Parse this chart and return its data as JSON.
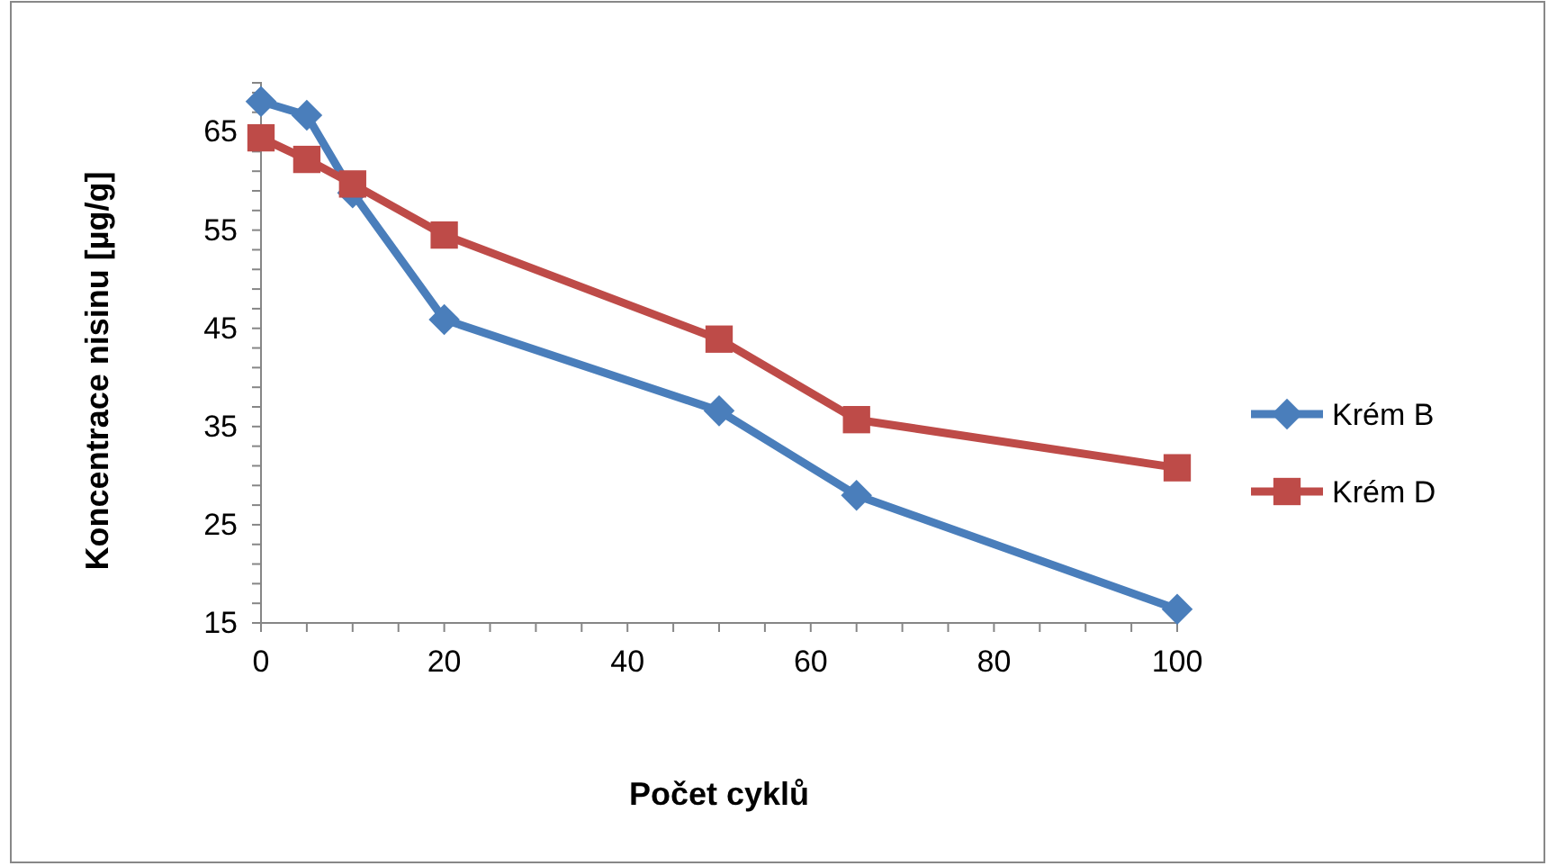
{
  "chart_data": {
    "type": "line",
    "xlabel": "Počet cyklů",
    "ylabel": "Koncentrace nisinu [µg/g]",
    "xlim": [
      0,
      100
    ],
    "ylim": [
      15,
      70
    ],
    "xticks": [
      0,
      {
        "value": 5,
        "label": null
      },
      {
        "value": 10,
        "label": null
      },
      {
        "value": 15,
        "label": null
      },
      20,
      {
        "value": 25,
        "label": null
      },
      {
        "value": 30,
        "label": null
      },
      {
        "value": 35,
        "label": null
      },
      40,
      {
        "value": 45,
        "label": null
      },
      {
        "value": 50,
        "label": null
      },
      {
        "value": 55,
        "label": null
      },
      60,
      {
        "value": 65,
        "label": null
      },
      {
        "value": 70,
        "label": null
      },
      {
        "value": 75,
        "label": null
      },
      80,
      {
        "value": 85,
        "label": null
      },
      {
        "value": 90,
        "label": null
      },
      {
        "value": 95,
        "label": null
      },
      100
    ],
    "yticks": [
      15,
      {
        "value": 17,
        "label": null
      },
      {
        "value": 19,
        "label": null
      },
      {
        "value": 21,
        "label": null
      },
      {
        "value": 23,
        "label": null
      },
      25,
      {
        "value": 27,
        "label": null
      },
      {
        "value": 29,
        "label": null
      },
      {
        "value": 31,
        "label": null
      },
      {
        "value": 33,
        "label": null
      },
      35,
      {
        "value": 37,
        "label": null
      },
      {
        "value": 39,
        "label": null
      },
      {
        "value": 41,
        "label": null
      },
      {
        "value": 43,
        "label": null
      },
      45,
      {
        "value": 47,
        "label": null
      },
      {
        "value": 49,
        "label": null
      },
      {
        "value": 51,
        "label": null
      },
      {
        "value": 53,
        "label": null
      },
      55,
      {
        "value": 57,
        "label": null
      },
      {
        "value": 59,
        "label": null
      },
      {
        "value": 61,
        "label": null
      },
      {
        "value": 63,
        "label": null
      },
      65,
      {
        "value": 67,
        "label": null
      },
      {
        "value": 69,
        "label": null
      }
    ],
    "x": [
      0,
      5,
      10,
      20,
      50,
      65,
      100
    ],
    "legend": "right",
    "grid": false,
    "series": [
      {
        "name": "Krém B",
        "color": "#4a7ebb",
        "marker": "diamond",
        "values": [
          68.1,
          66.7,
          58.8,
          45.9,
          36.6,
          28.0,
          16.4
        ]
      },
      {
        "name": "Krém D",
        "color": "#be4b48",
        "marker": "square",
        "values": [
          64.4,
          62.2,
          59.7,
          54.5,
          43.9,
          35.7,
          30.8
        ]
      }
    ]
  }
}
